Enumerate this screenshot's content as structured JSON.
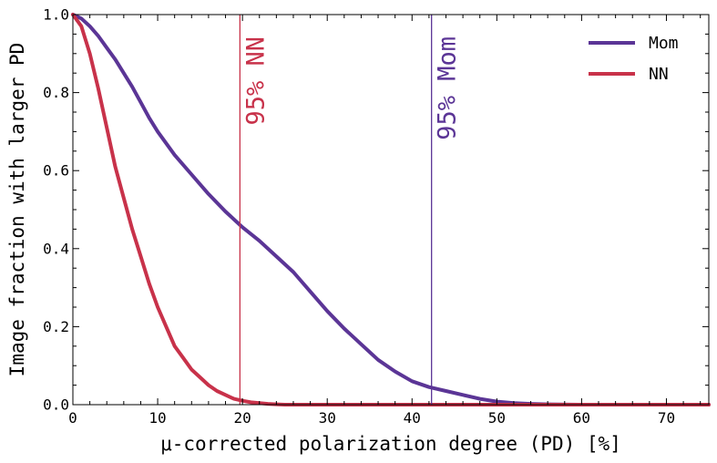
{
  "chart_data": {
    "type": "line",
    "xlabel": "μ-corrected polarization degree (PD) [%]",
    "ylabel": "Image fraction with larger PD",
    "xlim": [
      0,
      75
    ],
    "ylim": [
      0,
      1.0
    ],
    "x_ticks": [
      0,
      10,
      20,
      30,
      40,
      50,
      60,
      70
    ],
    "x_tick_labels": [
      "0",
      "10",
      "20",
      "30",
      "40",
      "50",
      "60",
      "70"
    ],
    "y_ticks": [
      0.0,
      0.2,
      0.4,
      0.6,
      0.8,
      1.0
    ],
    "y_tick_labels": [
      "0.0",
      "0.2",
      "0.4",
      "0.6",
      "0.8",
      "1.0"
    ],
    "grid": false,
    "legend_position": "top-right",
    "colors": {
      "Mom": "#5b3596",
      "NN": "#c8324a"
    },
    "series": [
      {
        "name": "Mom",
        "x": [
          0,
          1,
          2,
          3,
          4,
          5,
          6,
          7,
          8,
          9,
          10,
          12,
          14,
          16,
          18,
          20,
          22,
          24,
          26,
          28,
          30,
          32,
          34,
          36,
          38,
          40,
          42,
          44,
          46,
          48,
          50,
          52,
          54,
          56,
          60,
          65,
          70,
          75
        ],
        "y": [
          1.0,
          0.99,
          0.97,
          0.945,
          0.915,
          0.885,
          0.85,
          0.815,
          0.775,
          0.735,
          0.7,
          0.64,
          0.59,
          0.54,
          0.495,
          0.455,
          0.42,
          0.38,
          0.34,
          0.29,
          0.24,
          0.195,
          0.155,
          0.115,
          0.085,
          0.06,
          0.045,
          0.035,
          0.025,
          0.015,
          0.008,
          0.004,
          0.002,
          0.001,
          0.0,
          0.0,
          0.0,
          0.0
        ]
      },
      {
        "name": "NN",
        "x": [
          0,
          1,
          2,
          3,
          4,
          5,
          6,
          7,
          8,
          9,
          10,
          11,
          12,
          13,
          14,
          15,
          16,
          17,
          18,
          19,
          20,
          21,
          22,
          23,
          24,
          25,
          26,
          28,
          30,
          40,
          50,
          60,
          75
        ],
        "y": [
          1.0,
          0.97,
          0.9,
          0.81,
          0.71,
          0.61,
          0.53,
          0.45,
          0.38,
          0.31,
          0.25,
          0.2,
          0.15,
          0.12,
          0.09,
          0.07,
          0.05,
          0.035,
          0.025,
          0.015,
          0.01,
          0.006,
          0.004,
          0.002,
          0.001,
          0.0,
          0.0,
          0.0,
          0.0,
          0.0,
          0.0,
          0.0,
          0.0
        ]
      }
    ],
    "vlines": [
      {
        "x": 19.7,
        "label": "95% NN",
        "color": "#c8324a"
      },
      {
        "x": 42.3,
        "label": "95% Mom",
        "color": "#5b3596"
      }
    ]
  }
}
